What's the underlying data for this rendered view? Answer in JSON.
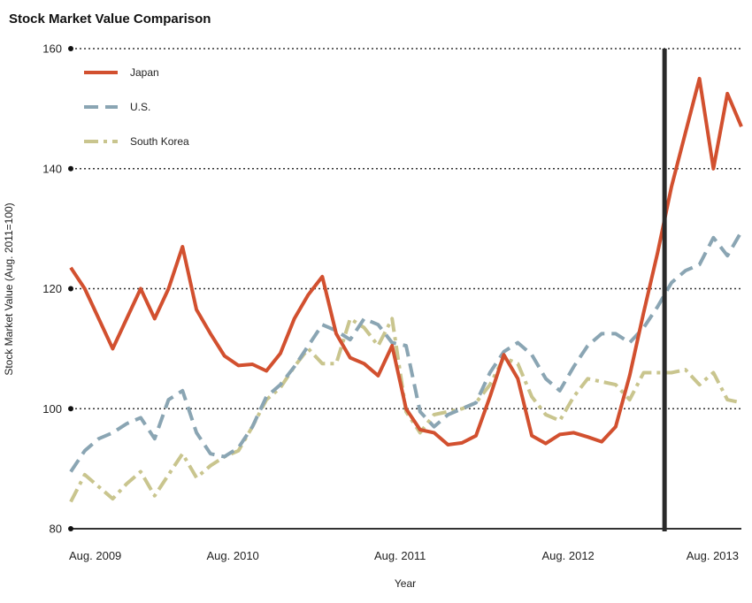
{
  "chart_data": {
    "type": "line",
    "title": "Stock Market Value Comparison",
    "xlabel": "Year",
    "ylabel": "Stock Market Value (Aug. 2011=100)",
    "ylim": [
      80,
      160
    ],
    "yticks": [
      80,
      100,
      120,
      140,
      160
    ],
    "xticks": [
      {
        "label": "Aug. 2009",
        "x": 0
      },
      {
        "label": "Aug. 2010",
        "x": 12
      },
      {
        "label": "Aug. 2011",
        "x": 24
      },
      {
        "label": "Aug. 2012",
        "x": 36
      },
      {
        "label": "Aug. 2013",
        "x": 48
      }
    ],
    "xlim": [
      0,
      48
    ],
    "grid": true,
    "marker_line_x": 42.5,
    "legend_position": "top-left",
    "series": [
      {
        "name": "Japan",
        "color": "#d2502f",
        "style": "solid",
        "x": [
          0,
          1,
          2,
          3,
          4,
          5,
          6,
          7,
          8,
          9,
          10,
          11,
          12,
          13,
          14,
          15,
          16,
          17,
          18,
          19,
          20,
          21,
          22,
          23,
          24,
          25,
          26,
          27,
          28,
          29,
          30,
          31,
          32,
          33,
          34,
          35,
          36,
          37,
          38,
          39,
          40,
          41,
          42,
          43,
          44,
          45,
          46,
          47,
          48
        ],
        "values": [
          123.5,
          120,
          115,
          110,
          115,
          120,
          115,
          120,
          127,
          116.5,
          112.5,
          108.8,
          107.2,
          107.4,
          106.3,
          109.2,
          115,
          119,
          122,
          112.5,
          108.5,
          107.5,
          105.5,
          110.5,
          100,
          96.5,
          96,
          94,
          94.3,
          95.5,
          102,
          109,
          105,
          95.5,
          94.2,
          95.7,
          96,
          95.3,
          94.5,
          97,
          105.5,
          116,
          126,
          137,
          146,
          155,
          140,
          152.5,
          147
        ]
      },
      {
        "name": "U.S.",
        "color": "#8aa5b3",
        "style": "dashed",
        "x": [
          0,
          1,
          2,
          3,
          4,
          5,
          6,
          7,
          8,
          9,
          10,
          11,
          12,
          13,
          14,
          15,
          16,
          17,
          18,
          19,
          20,
          21,
          22,
          23,
          24,
          25,
          26,
          27,
          28,
          29,
          30,
          31,
          32,
          33,
          34,
          35,
          36,
          37,
          38,
          39,
          40,
          41,
          42,
          43,
          44,
          45,
          46,
          47,
          48
        ],
        "values": [
          89.5,
          93,
          95,
          96,
          97.5,
          98.5,
          95,
          101.5,
          103,
          96,
          92.5,
          92,
          93.5,
          97,
          102,
          104,
          107,
          110.5,
          114,
          113,
          111.5,
          115,
          114,
          111,
          110.5,
          99.5,
          97,
          99,
          100,
          101,
          106,
          109.5,
          111,
          109,
          105,
          103,
          107,
          110.5,
          112.5,
          112.5,
          111,
          113.5,
          117,
          121,
          123,
          124,
          128.5,
          125.5,
          129.5
        ]
      },
      {
        "name": "South Korea",
        "color": "#c9c58e",
        "style": "dashdot",
        "x": [
          0,
          1,
          2,
          3,
          4,
          5,
          6,
          7,
          8,
          9,
          10,
          11,
          12,
          13,
          14,
          15,
          16,
          17,
          18,
          19,
          20,
          21,
          22,
          23,
          24,
          25,
          26,
          27,
          28,
          29,
          30,
          31,
          32,
          33,
          34,
          35,
          36,
          37,
          38,
          39,
          40,
          41,
          42,
          43,
          44,
          45,
          46,
          47,
          48
        ],
        "values": [
          84.5,
          89,
          87,
          85,
          87.5,
          89.5,
          85.5,
          89,
          92.5,
          88.5,
          90.5,
          92,
          93,
          97,
          101.5,
          103.5,
          107,
          110,
          107.5,
          107.5,
          115,
          113.5,
          110.5,
          115,
          99.5,
          96,
          99,
          99.5,
          100,
          101,
          104,
          108.5,
          107.5,
          102,
          99,
          98,
          102,
          105,
          104.5,
          104,
          101.5,
          106,
          106,
          106,
          106.5,
          104,
          106,
          101.5,
          101
        ]
      }
    ]
  }
}
